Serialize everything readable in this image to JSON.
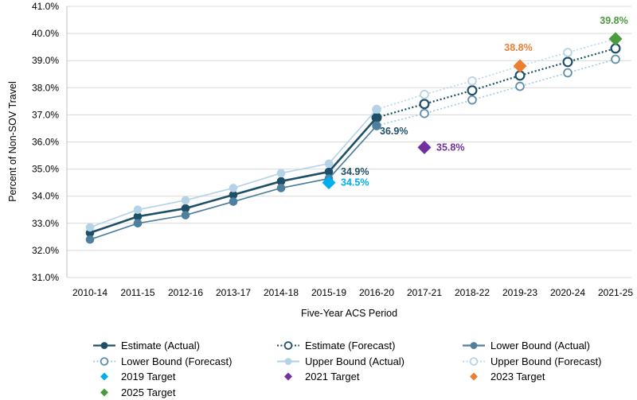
{
  "chart_data": {
    "type": "line",
    "title": "",
    "xlabel": "Five-Year ACS Period",
    "ylabel": "Percent of Non-SOV Travel",
    "ylim": [
      31,
      41
    ],
    "grid": true,
    "legend_position": "bottom",
    "y_ticks": [
      "41.0%",
      "40.0%",
      "39.0%",
      "38.0%",
      "37.0%",
      "36.0%",
      "35.0%",
      "34.0%",
      "33.0%",
      "32.0%",
      "31.0%"
    ],
    "x_categories": [
      "2010-14",
      "2011-15",
      "2012-16",
      "2013-17",
      "2014-18",
      "2015-19",
      "2016-20",
      "2017-21",
      "2018-22",
      "2019-23",
      "2020-24",
      "2021-25"
    ],
    "series": [
      {
        "name": "Estimate (Actual)",
        "slug": "estimate-actual",
        "style": "solid",
        "marker": "filled",
        "color": "#1D5068",
        "x_start_index": 0,
        "values": [
          32.65,
          33.25,
          33.55,
          34.05,
          34.55,
          34.9,
          36.9
        ]
      },
      {
        "name": "Estimate (Forecast)",
        "slug": "estimate-forecast",
        "style": "dotted",
        "marker": "open",
        "color": "#1D5068",
        "line_color": "#1D5068",
        "x_start_index": 6,
        "values": [
          36.9,
          37.4,
          37.9,
          38.45,
          38.95,
          39.45
        ]
      },
      {
        "name": "Lower Bound (Actual)",
        "slug": "lower-bound-actual",
        "style": "solid",
        "marker": "filled",
        "color": "#4E7F9E",
        "x_start_index": 0,
        "values": [
          32.4,
          33.0,
          33.3,
          33.8,
          34.3,
          34.65,
          36.6
        ]
      },
      {
        "name": "Lower Bound (Forecast)",
        "slug": "lower-bound-forecast",
        "style": "dotted",
        "marker": "open",
        "color": "#5E8EAC",
        "line_color": "#A5CCE0",
        "x_start_index": 6,
        "values": [
          36.6,
          37.05,
          37.55,
          38.05,
          38.55,
          39.05
        ]
      },
      {
        "name": "Upper Bound (Actual)",
        "slug": "upper-bound-actual",
        "style": "solid",
        "marker": "filled",
        "color": "#B5D3E7",
        "x_start_index": 0,
        "values": [
          32.85,
          33.5,
          33.85,
          34.3,
          34.85,
          35.2,
          37.2
        ]
      },
      {
        "name": "Upper Bound (Forecast)",
        "slug": "upper-bound-forecast",
        "style": "dotted",
        "marker": "open",
        "color": "#B5D3E7",
        "line_color": "#B9D8EA",
        "x_start_index": 6,
        "values": [
          37.2,
          37.75,
          38.25,
          38.8,
          39.3,
          39.8
        ]
      }
    ],
    "targets": [
      {
        "name": "2019 Target",
        "slug": "target-2019",
        "x_index": 5,
        "value": 34.5,
        "color": "#00AEEF"
      },
      {
        "name": "2021 Target",
        "slug": "target-2021",
        "x_index": 7,
        "value": 35.8,
        "color": "#7030A0"
      },
      {
        "name": "2023 Target",
        "slug": "target-2023",
        "x_index": 9,
        "value": 38.8,
        "color": "#ED7D31"
      },
      {
        "name": "2025 Target",
        "slug": "target-2025",
        "x_index": 11,
        "value": 39.8,
        "color": "#4A9B3C"
      }
    ],
    "annotations": [
      {
        "text": "34.9%",
        "x_index": 5,
        "value": 34.9,
        "placement": "right",
        "color": "#1D5068"
      },
      {
        "text": "34.5%",
        "x_index": 5,
        "value": 34.5,
        "placement": "right",
        "color": "#00AEEF"
      },
      {
        "text": "36.9%",
        "x_index": 6,
        "value": 36.9,
        "placement": "below-right",
        "color": "#1D5068"
      },
      {
        "text": "35.8%",
        "x_index": 7,
        "value": 35.8,
        "placement": "right",
        "color": "#7030A0"
      },
      {
        "text": "38.8%",
        "x_index": 9,
        "value": 38.8,
        "placement": "above",
        "color": "#ED7D31"
      },
      {
        "text": "39.8%",
        "x_index": 11,
        "value": 39.8,
        "placement": "above",
        "color": "#4A9B3C"
      }
    ],
    "colors": {
      "estimate": "#1D5068",
      "lower_bound": "#4E7F9E",
      "upper_bound": "#B5D3E7",
      "target_2019": "#00AEEF",
      "target_2021": "#7030A0",
      "target_2023": "#ED7D31",
      "target_2025": "#4A9B3C",
      "gridline": "#D9D9D9",
      "axis_line": "#BFBFBF"
    }
  },
  "legend": {
    "items": [
      {
        "label": "Estimate (Actual)",
        "glyph": "line-solid-filled",
        "color": "#1D5068",
        "line_color": "#1D5068"
      },
      {
        "label": "Estimate (Forecast)",
        "glyph": "line-dotted-open",
        "color": "#1D5068",
        "line_color": "#1D5068"
      },
      {
        "label": "Lower Bound (Actual)",
        "glyph": "line-solid-filled",
        "color": "#4E7F9E",
        "line_color": "#4E7F9E"
      },
      {
        "label": "Lower Bound (Forecast)",
        "glyph": "line-dotted-open",
        "color": "#5E8EAC",
        "line_color": "#A5CCE0"
      },
      {
        "label": "Upper Bound (Actual)",
        "glyph": "line-solid-filled",
        "color": "#B5D3E7",
        "line_color": "#B5D3E7"
      },
      {
        "label": "Upper Bound (Forecast)",
        "glyph": "line-dotted-open",
        "color": "#B5D3E7",
        "line_color": "#B9D8EA"
      },
      {
        "label": "2019 Target",
        "glyph": "diamond",
        "color": "#00AEEF"
      },
      {
        "label": "2021 Target",
        "glyph": "diamond",
        "color": "#7030A0"
      },
      {
        "label": "2023 Target",
        "glyph": "diamond",
        "color": "#ED7D31"
      },
      {
        "label": "2025 Target",
        "glyph": "diamond",
        "color": "#4A9B3C"
      }
    ]
  }
}
